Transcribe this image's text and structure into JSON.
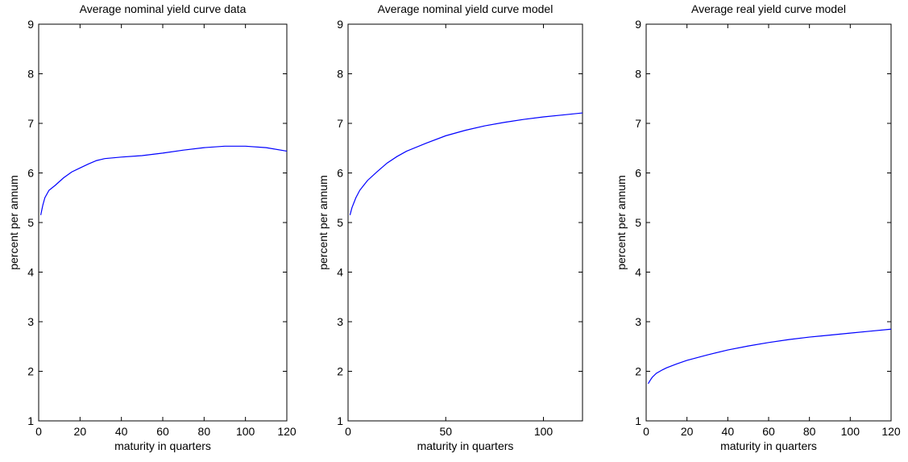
{
  "chart_data": [
    {
      "type": "line",
      "title": "Average nominal yield curve data",
      "xlabel": "maturity in quarters",
      "ylabel": "percent per annum",
      "xlim": [
        0,
        120
      ],
      "ylim": [
        1,
        9
      ],
      "xticks": [
        0,
        20,
        40,
        60,
        80,
        100,
        120
      ],
      "yticks": [
        1,
        2,
        3,
        4,
        5,
        6,
        7,
        8,
        9
      ],
      "grid": false,
      "line_color": "#0000ff",
      "series": [
        {
          "x": [
            1,
            2,
            3,
            5,
            8,
            12,
            16,
            20,
            24,
            28,
            32,
            40,
            50,
            60,
            70,
            80,
            90,
            100,
            110,
            120
          ],
          "values": [
            5.15,
            5.35,
            5.5,
            5.65,
            5.75,
            5.9,
            6.02,
            6.1,
            6.18,
            6.25,
            6.29,
            6.32,
            6.35,
            6.4,
            6.46,
            6.51,
            6.54,
            6.54,
            6.51,
            6.44
          ]
        }
      ]
    },
    {
      "type": "line",
      "title": "Average nominal yield curve model",
      "xlabel": "maturity in quarters",
      "ylabel": "percent per annum",
      "xlim": [
        0,
        120
      ],
      "ylim": [
        1,
        9
      ],
      "xticks": [
        0,
        50,
        100
      ],
      "yticks": [
        1,
        2,
        3,
        4,
        5,
        6,
        7,
        8,
        9
      ],
      "grid": false,
      "line_color": "#0000ff",
      "series": [
        {
          "x": [
            1,
            2,
            4,
            6,
            8,
            10,
            15,
            20,
            25,
            30,
            40,
            50,
            60,
            70,
            80,
            90,
            100,
            110,
            120
          ],
          "values": [
            5.15,
            5.3,
            5.5,
            5.65,
            5.75,
            5.85,
            6.03,
            6.2,
            6.33,
            6.44,
            6.6,
            6.75,
            6.86,
            6.95,
            7.02,
            7.08,
            7.13,
            7.17,
            7.21
          ]
        }
      ]
    },
    {
      "type": "line",
      "title": "Average real yield curve model",
      "xlabel": "maturity in quarters",
      "ylabel": "percent per annum",
      "xlim": [
        0,
        120
      ],
      "ylim": [
        1,
        9
      ],
      "xticks": [
        0,
        20,
        40,
        60,
        80,
        100,
        120
      ],
      "yticks": [
        1,
        2,
        3,
        4,
        5,
        6,
        7,
        8,
        9
      ],
      "grid": false,
      "line_color": "#0000ff",
      "series": [
        {
          "x": [
            1,
            2,
            3,
            5,
            8,
            10,
            15,
            20,
            30,
            40,
            50,
            60,
            70,
            80,
            90,
            100,
            110,
            120
          ],
          "values": [
            1.75,
            1.82,
            1.88,
            1.96,
            2.03,
            2.07,
            2.15,
            2.22,
            2.33,
            2.43,
            2.51,
            2.58,
            2.64,
            2.69,
            2.73,
            2.77,
            2.81,
            2.85
          ]
        }
      ]
    }
  ]
}
